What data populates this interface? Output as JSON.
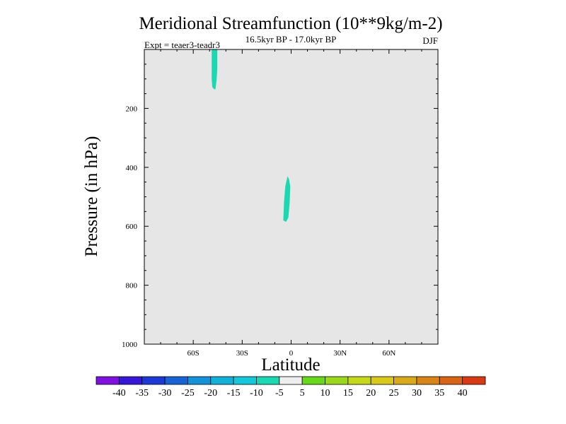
{
  "chart_data": {
    "type": "filled-contour",
    "title": "Meridional Streamfunction (10**9kg/m-2)",
    "subtitle": "16.5kyr BP - 17.0kyr BP",
    "left_label": "Expt = teaer3-teadr3",
    "right_label": "DJF",
    "xlabel": "Latitude",
    "ylabel": "Pressure (in hPa)",
    "xlim": [
      -90,
      90
    ],
    "ylim": [
      0,
      1000
    ],
    "y_inverted": true,
    "x_ticks": [
      {
        "value": -60,
        "label": "60S"
      },
      {
        "value": -30,
        "label": "30S"
      },
      {
        "value": 0,
        "label": "0"
      },
      {
        "value": 30,
        "label": "30N"
      },
      {
        "value": 60,
        "label": "60N"
      }
    ],
    "y_ticks": [
      {
        "value": 200,
        "label": "200"
      },
      {
        "value": 400,
        "label": "400"
      },
      {
        "value": 600,
        "label": "600"
      },
      {
        "value": 800,
        "label": "800"
      },
      {
        "value": 1000,
        "label": "1000"
      }
    ],
    "background_fill": "#e6e6e6",
    "filled_regions": [
      {
        "name": "upper-region-near-47S",
        "range": [
          -10,
          -5
        ],
        "color": "#19d9b3",
        "outline": [
          [
            -48.7,
            0
          ],
          [
            -45.3,
            0
          ],
          [
            -45.3,
            67
          ],
          [
            -45.7,
            105
          ],
          [
            -46.4,
            135
          ],
          [
            -47.2,
            135
          ],
          [
            -48.3,
            128
          ],
          [
            -48.7,
            100
          ],
          [
            -48.7,
            0
          ]
        ]
      },
      {
        "name": "mid-region-near-3S",
        "range": [
          -10,
          -5
        ],
        "color": "#19d9b3",
        "outline": [
          [
            -3.6,
            465
          ],
          [
            -2.2,
            430
          ],
          [
            -1.3,
            440
          ],
          [
            -0.5,
            465
          ],
          [
            -0.9,
            520
          ],
          [
            -1.7,
            570
          ],
          [
            -3.1,
            585
          ],
          [
            -4.8,
            580
          ],
          [
            -4.4,
            520
          ],
          [
            -3.6,
            465
          ]
        ]
      }
    ],
    "colorbar": {
      "labels": [
        "-40",
        "-35",
        "-30",
        "-25",
        "-20",
        "-15",
        "-10",
        "-5",
        "5",
        "10",
        "15",
        "20",
        "25",
        "30",
        "35",
        "40"
      ],
      "colors": [
        "#7f10e0",
        "#3716d9",
        "#1d38d9",
        "#1764d9",
        "#1393d9",
        "#10b2d9",
        "#12c8d9",
        "#19d9b3",
        "#eeeeee",
        "#66d919",
        "#99d919",
        "#c6d919",
        "#d9c919",
        "#d9aa17",
        "#d98515",
        "#d96414",
        "#d93a12"
      ]
    }
  }
}
